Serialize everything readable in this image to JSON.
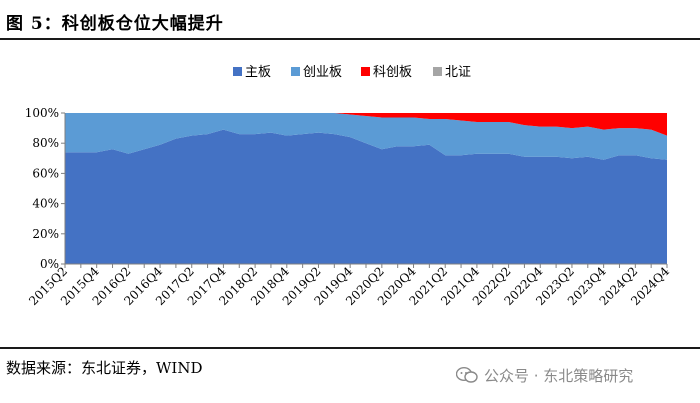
{
  "header": {
    "title": "图  5：科创板仓位大幅提升"
  },
  "footer": {
    "source": "数据来源：东北证券，WIND",
    "watermark": "公众号 · 东北策略研究"
  },
  "chart_data": {
    "type": "area",
    "stacked": true,
    "percent": true,
    "x": [
      "2015Q2",
      "2015Q3",
      "2015Q4",
      "2016Q1",
      "2016Q2",
      "2016Q3",
      "2016Q4",
      "2017Q1",
      "2017Q2",
      "2017Q3",
      "2017Q4",
      "2018Q1",
      "2018Q2",
      "2018Q3",
      "2018Q4",
      "2019Q1",
      "2019Q2",
      "2019Q3",
      "2019Q4",
      "2020Q1",
      "2020Q2",
      "2020Q3",
      "2020Q4",
      "2021Q1",
      "2021Q2",
      "2021Q3",
      "2021Q4",
      "2022Q1",
      "2022Q2",
      "2022Q3",
      "2022Q4",
      "2023Q1",
      "2023Q2",
      "2023Q3",
      "2023Q4",
      "2024Q1",
      "2024Q2",
      "2024Q3",
      "2024Q4"
    ],
    "x_tick_labels": [
      "2015Q2",
      "2015Q4",
      "2016Q2",
      "2016Q4",
      "2017Q2",
      "2017Q4",
      "2018Q2",
      "2018Q4",
      "2019Q2",
      "2019Q4",
      "2020Q2",
      "2020Q4",
      "2021Q2",
      "2021Q4",
      "2022Q2",
      "2022Q4",
      "2023Q2",
      "2023Q4",
      "2024Q2",
      "2024Q4"
    ],
    "y_ticks": [
      "0%",
      "20%",
      "40%",
      "60%",
      "80%",
      "100%"
    ],
    "ylim": [
      0,
      100
    ],
    "series": [
      {
        "name": "主板",
        "color": "#4472C4",
        "values": [
          74,
          74,
          74,
          76,
          73,
          76,
          79,
          83,
          85,
          86,
          89,
          86,
          86,
          87,
          85,
          86,
          87,
          86,
          84,
          80,
          76,
          78,
          78,
          79,
          72,
          72,
          73,
          73,
          73,
          71,
          71,
          71,
          70,
          71,
          69,
          72,
          72,
          70,
          69
        ]
      },
      {
        "name": "创业板",
        "color": "#5B9BD5",
        "values": [
          26,
          26,
          26,
          24,
          27,
          24,
          21,
          17,
          15,
          14,
          11,
          14,
          14,
          13,
          15,
          14,
          13,
          14,
          15,
          18,
          21,
          19,
          19,
          17,
          24,
          23,
          21,
          21,
          21,
          21,
          20,
          20,
          20,
          20,
          20,
          18,
          18,
          19,
          16
        ]
      },
      {
        "name": "科创板",
        "color": "#FF0000",
        "values": [
          0,
          0,
          0,
          0,
          0,
          0,
          0,
          0,
          0,
          0,
          0,
          0,
          0,
          0,
          0,
          0,
          0,
          0,
          1,
          2,
          3,
          3,
          3,
          4,
          4,
          5,
          6,
          6,
          6,
          8,
          9,
          9,
          10,
          9,
          11,
          10,
          10,
          11,
          15
        ]
      },
      {
        "name": "北证",
        "color": "#A5A5A5",
        "values": [
          0,
          0,
          0,
          0,
          0,
          0,
          0,
          0,
          0,
          0,
          0,
          0,
          0,
          0,
          0,
          0,
          0,
          0,
          0,
          0,
          0,
          0,
          0,
          0,
          0,
          0,
          0,
          0,
          0,
          0,
          0,
          0,
          0,
          0,
          0,
          0,
          0,
          0,
          0
        ]
      }
    ],
    "legend_position": "top-center",
    "grid": false
  }
}
